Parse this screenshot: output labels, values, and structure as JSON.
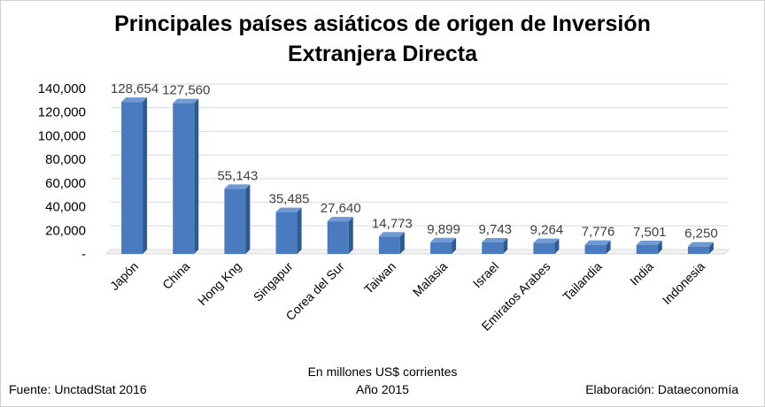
{
  "title_line1": "Principales países asiáticos de origen de Inversión",
  "title_line2": "Extranjera Directa",
  "footer": {
    "source": "Fuente: UnctadStat 2016",
    "units": "En millones US$ corrientes",
    "year": "Año 2015",
    "credit": "Elaboración: Dataeconomía"
  },
  "colors": {
    "bar_front": "#4a7bbf",
    "bar_side": "#2e5a92",
    "bar_top": "#6f9ad3",
    "grid": "#d9d9d9",
    "text": "#404040"
  },
  "chart_data": {
    "type": "bar",
    "title": "Principales países asiáticos de origen de Inversión Extranjera Directa",
    "categories": [
      "Japón",
      "China",
      "Hong Kng",
      "Singapur",
      "Corea del Sur",
      "Taiwan",
      "Malasia",
      "Israel",
      "Emiratos Arabes",
      "Tailandia",
      "India",
      "Indonesia"
    ],
    "series": [
      {
        "values": [
          128654,
          127560,
          55143,
          35485,
          27640,
          14773,
          9899,
          9743,
          9264,
          7776,
          7501,
          6250
        ]
      }
    ],
    "data_labels": [
      "128,654",
      "127,560",
      "55,143",
      "35,485",
      "27,640",
      "14,773",
      "9,899",
      "9,743",
      "9,264",
      "7,776",
      "7,501",
      "6,250"
    ],
    "y_ticks": [
      "-",
      "20,000",
      "40,000",
      "60,000",
      "80,000",
      "100,000",
      "120,000",
      "140,000"
    ],
    "y_tick_values": [
      0,
      20000,
      40000,
      60000,
      80000,
      100000,
      120000,
      140000
    ],
    "ylim": [
      0,
      140000
    ],
    "grid": true,
    "legend": "none"
  }
}
